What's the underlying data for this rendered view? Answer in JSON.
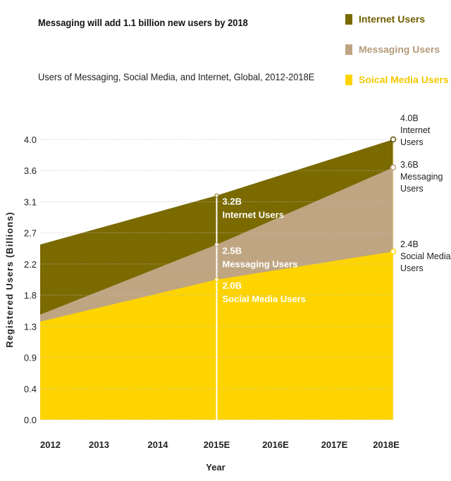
{
  "chart_data": {
    "type": "area",
    "title": "Messaging will add 1.1 billion new users by 2018",
    "subtitle": "Users of Messaging, Social Media, and Internet, Global, 2012-2018E",
    "xlabel": "Year",
    "ylabel": "Registered Users (Billions)",
    "categories": [
      "2012",
      "2013",
      "2014",
      "2015E",
      "2016E",
      "2017E",
      "2018E"
    ],
    "yticks": [
      "0.0",
      "0.4",
      "0.9",
      "1.3",
      "1.8",
      "2.2",
      "2.7",
      "3.1",
      "3.6",
      "4.0"
    ],
    "ylim": [
      0,
      4.0
    ],
    "grid": true,
    "legend_position": "top-right",
    "series": [
      {
        "name": "Internet Users",
        "color": "#7a6a00",
        "points": [
          {
            "x": "2012",
            "y": 2.5
          },
          {
            "x": "2015E",
            "y": 3.2
          },
          {
            "x": "2018E",
            "y": 4.0
          }
        ]
      },
      {
        "name": "Messaging Users",
        "color": "#bfa582",
        "points": [
          {
            "x": "2012",
            "y": 1.5
          },
          {
            "x": "2015E",
            "y": 2.5
          },
          {
            "x": "2018E",
            "y": 3.6
          }
        ]
      },
      {
        "name": "Soical Media Users",
        "color": "#fdd400",
        "points": [
          {
            "x": "2012",
            "y": 1.4
          },
          {
            "x": "2015E",
            "y": 2.0
          },
          {
            "x": "2018E",
            "y": 2.4
          }
        ]
      }
    ],
    "annotations_2015": [
      {
        "value": "3.2B",
        "text": "Internet Users"
      },
      {
        "value": "2.5B",
        "text": "Messaging Users"
      },
      {
        "value": "2.0B",
        "text": "Social Media Users"
      }
    ],
    "annotations_2018": [
      {
        "value": "4.0B",
        "lines": [
          "Internet",
          "Users"
        ]
      },
      {
        "value": "3.6B",
        "lines": [
          "Messaging",
          "Users"
        ]
      },
      {
        "value": "2.4B",
        "lines": [
          "Social Media",
          "Users"
        ]
      }
    ]
  }
}
